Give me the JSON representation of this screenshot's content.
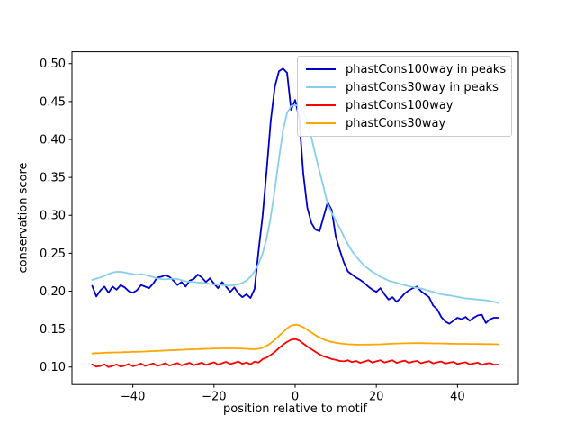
{
  "chart_data": {
    "type": "line",
    "xlabel": "position relative to motif",
    "ylabel": "conservation score",
    "grid": false,
    "legend_position": "upper right",
    "background_color": "#ffffff",
    "xlim": [
      -55,
      55
    ],
    "ylim": [
      0.0769,
      0.5156
    ],
    "xticks": [
      -40,
      -20,
      0,
      20,
      40
    ],
    "xtick_labels": [
      "−40",
      "−20",
      "0",
      "20",
      "40"
    ],
    "yticks": [
      0.1,
      0.15,
      0.2,
      0.25,
      0.3,
      0.35,
      0.4,
      0.45,
      0.5
    ],
    "ytick_labels": [
      "0.10",
      "0.15",
      "0.20",
      "0.25",
      "0.30",
      "0.35",
      "0.40",
      "0.45",
      "0.50"
    ],
    "x": [
      -50,
      -49,
      -48,
      -47,
      -46,
      -45,
      -44,
      -43,
      -42,
      -41,
      -40,
      -39,
      -38,
      -37,
      -36,
      -35,
      -34,
      -33,
      -32,
      -31,
      -30,
      -29,
      -28,
      -27,
      -26,
      -25,
      -24,
      -23,
      -22,
      -21,
      -20,
      -19,
      -18,
      -17,
      -16,
      -15,
      -14,
      -13,
      -12,
      -11,
      -10,
      -9,
      -8,
      -7,
      -6,
      -5,
      -4,
      -3,
      -2,
      -1,
      0,
      1,
      2,
      3,
      4,
      5,
      6,
      7,
      8,
      9,
      10,
      11,
      12,
      13,
      14,
      15,
      16,
      17,
      18,
      19,
      20,
      21,
      22,
      23,
      24,
      25,
      26,
      27,
      28,
      29,
      30,
      31,
      32,
      33,
      34,
      35,
      36,
      37,
      38,
      39,
      40,
      41,
      42,
      43,
      44,
      45,
      46,
      47,
      48,
      49,
      50
    ],
    "series": [
      {
        "name": "phastCons100way in peaks",
        "color": "#0000cd",
        "values": [
          0.207,
          0.193,
          0.201,
          0.206,
          0.198,
          0.206,
          0.202,
          0.208,
          0.205,
          0.2,
          0.198,
          0.201,
          0.208,
          0.206,
          0.204,
          0.21,
          0.218,
          0.219,
          0.221,
          0.219,
          0.214,
          0.208,
          0.212,
          0.206,
          0.214,
          0.216,
          0.222,
          0.218,
          0.212,
          0.217,
          0.21,
          0.204,
          0.212,
          0.206,
          0.199,
          0.205,
          0.197,
          0.192,
          0.196,
          0.191,
          0.203,
          0.254,
          0.3,
          0.36,
          0.425,
          0.47,
          0.49,
          0.4935,
          0.488,
          0.439,
          0.452,
          0.428,
          0.355,
          0.31,
          0.29,
          0.281,
          0.279,
          0.298,
          0.317,
          0.307,
          0.272,
          0.254,
          0.238,
          0.226,
          0.222,
          0.218,
          0.215,
          0.211,
          0.206,
          0.202,
          0.199,
          0.204,
          0.196,
          0.189,
          0.192,
          0.186,
          0.191,
          0.197,
          0.201,
          0.204,
          0.206,
          0.2,
          0.196,
          0.192,
          0.181,
          0.176,
          0.166,
          0.16,
          0.157,
          0.161,
          0.165,
          0.163,
          0.166,
          0.161,
          0.165,
          0.168,
          0.169,
          0.158,
          0.163,
          0.165,
          0.165
        ]
      },
      {
        "name": "phastCons30way in peaks",
        "color": "#87ceeb",
        "values": [
          0.215,
          0.2165,
          0.218,
          0.22,
          0.2225,
          0.2245,
          0.2255,
          0.2255,
          0.2245,
          0.2235,
          0.2225,
          0.2215,
          0.2225,
          0.2215,
          0.22,
          0.2185,
          0.217,
          0.216,
          0.2155,
          0.216,
          0.2165,
          0.216,
          0.2145,
          0.213,
          0.2125,
          0.212,
          0.2115,
          0.211,
          0.2105,
          0.2095,
          0.209,
          0.2085,
          0.208,
          0.2075,
          0.2075,
          0.208,
          0.209,
          0.211,
          0.214,
          0.219,
          0.226,
          0.236,
          0.25,
          0.27,
          0.298,
          0.335,
          0.375,
          0.412,
          0.435,
          0.444,
          0.4455,
          0.444,
          0.437,
          0.423,
          0.403,
          0.38,
          0.358,
          0.337,
          0.315,
          0.303,
          0.293,
          0.283,
          0.272,
          0.262,
          0.253,
          0.246,
          0.2395,
          0.234,
          0.2295,
          0.2255,
          0.2225,
          0.219,
          0.2165,
          0.214,
          0.2125,
          0.211,
          0.2095,
          0.208,
          0.2065,
          0.2055,
          0.2045,
          0.2035,
          0.202,
          0.2005,
          0.199,
          0.1975,
          0.196,
          0.195,
          0.1945,
          0.1935,
          0.1925,
          0.1915,
          0.1905,
          0.19,
          0.1895,
          0.189,
          0.1885,
          0.188,
          0.187,
          0.186,
          0.1845
        ]
      },
      {
        "name": "phastCons100way",
        "color": "#fe0000",
        "values": [
          0.1035,
          0.1005,
          0.1015,
          0.1035,
          0.1,
          0.1015,
          0.1035,
          0.1005,
          0.102,
          0.104,
          0.101,
          0.1025,
          0.1045,
          0.1015,
          0.103,
          0.1048,
          0.1015,
          0.103,
          0.105,
          0.102,
          0.1035,
          0.1052,
          0.1022,
          0.1038,
          0.1055,
          0.1025,
          0.104,
          0.1058,
          0.1028,
          0.1045,
          0.1062,
          0.1032,
          0.105,
          0.1068,
          0.1038,
          0.1055,
          0.1072,
          0.1042,
          0.106,
          0.1035,
          0.107,
          0.106,
          0.1105,
          0.1125,
          0.116,
          0.12,
          0.125,
          0.1295,
          0.133,
          0.136,
          0.137,
          0.135,
          0.131,
          0.127,
          0.1235,
          0.12,
          0.1165,
          0.114,
          0.1125,
          0.1105,
          0.1095,
          0.108,
          0.1075,
          0.109,
          0.1065,
          0.108,
          0.1055,
          0.107,
          0.109,
          0.106,
          0.1075,
          0.109,
          0.106,
          0.1075,
          0.109,
          0.1055,
          0.107,
          0.1085,
          0.1055,
          0.107,
          0.108,
          0.105,
          0.1065,
          0.1078,
          0.1048,
          0.1062,
          0.1073,
          0.1045,
          0.1058,
          0.1068,
          0.104,
          0.1053,
          0.1063,
          0.1035,
          0.1048,
          0.1058,
          0.103,
          0.1043,
          0.1053,
          0.103,
          0.1032
        ]
      },
      {
        "name": "phastCons30way",
        "color": "#ffa500",
        "values": [
          0.118,
          0.1183,
          0.1185,
          0.1188,
          0.119,
          0.1191,
          0.1193,
          0.1194,
          0.1196,
          0.1198,
          0.12,
          0.1201,
          0.1203,
          0.1205,
          0.1208,
          0.121,
          0.1213,
          0.1215,
          0.1218,
          0.122,
          0.1223,
          0.1225,
          0.1227,
          0.123,
          0.1232,
          0.1234,
          0.1236,
          0.1238,
          0.124,
          0.1242,
          0.1244,
          0.1245,
          0.1246,
          0.1246,
          0.1246,
          0.1246,
          0.1245,
          0.1243,
          0.124,
          0.1237,
          0.1236,
          0.124,
          0.1255,
          0.128,
          0.1315,
          0.136,
          0.141,
          0.146,
          0.151,
          0.1545,
          0.1558,
          0.155,
          0.1525,
          0.149,
          0.1455,
          0.142,
          0.139,
          0.1365,
          0.1345,
          0.133,
          0.132,
          0.1312,
          0.1306,
          0.1301,
          0.1298,
          0.1296,
          0.1295,
          0.1295,
          0.1296,
          0.1297,
          0.1298,
          0.13,
          0.1302,
          0.1305,
          0.1308,
          0.131,
          0.1312,
          0.1313,
          0.1314,
          0.1315,
          0.1315,
          0.1315,
          0.1314,
          0.1313,
          0.1312,
          0.1311,
          0.131,
          0.1309,
          0.1308,
          0.1307,
          0.1306,
          0.1305,
          0.1305,
          0.1304,
          0.1304,
          0.1303,
          0.1303,
          0.1302,
          0.1302,
          0.1301,
          0.13
        ]
      }
    ]
  }
}
